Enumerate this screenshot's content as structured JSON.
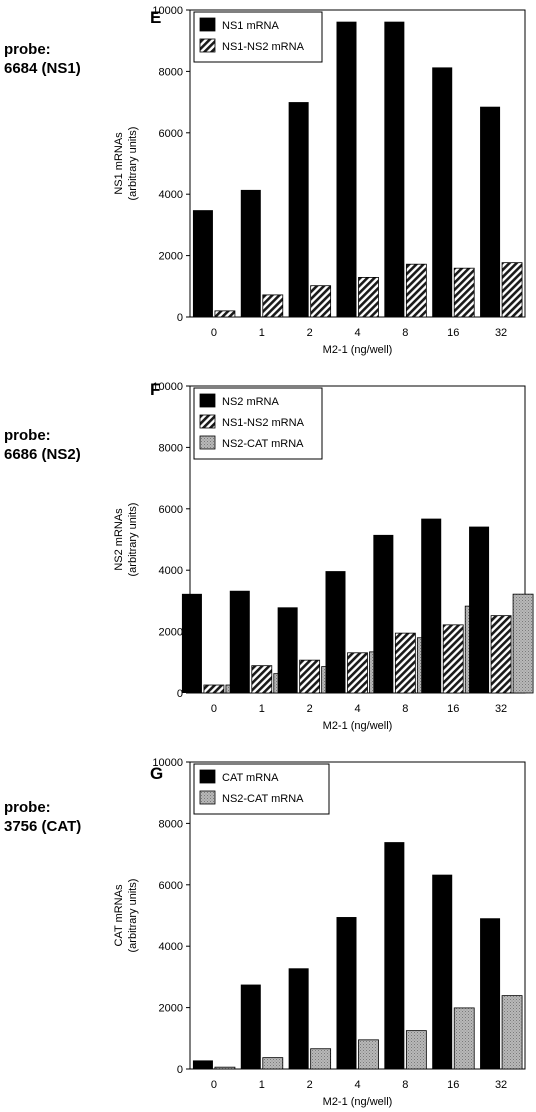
{
  "panels": [
    {
      "letter": "E",
      "probe_line1": "probe:",
      "probe_line2": "6684 (NS1)"
    },
    {
      "letter": "F",
      "probe_line1": "probe:",
      "probe_line2": "6686 (NS2)"
    },
    {
      "letter": "G",
      "probe_line1": "probe:",
      "probe_line2": "3756 (CAT)"
    }
  ],
  "chart_data": [
    {
      "type": "bar",
      "title": "",
      "xlabel": "M2-1 (ng/well)",
      "ylabel": [
        "NS1 mRNAs",
        "(arbitrary units)"
      ],
      "categories": [
        "0",
        "1",
        "2",
        "4",
        "8",
        "16",
        "32"
      ],
      "ylim": [
        0,
        10000
      ],
      "yticks": [
        0,
        2000,
        4000,
        6000,
        8000,
        10000
      ],
      "legend_position": "top-left",
      "series": [
        {
          "name": "NS1 mRNA",
          "style": "solid-black",
          "values": [
            3480,
            4140,
            7000,
            9620,
            9620,
            8130,
            6850
          ]
        },
        {
          "name": "NS1-NS2 mRNA",
          "style": "hatched",
          "values": [
            200,
            720,
            1020,
            1290,
            1720,
            1590,
            1770
          ]
        }
      ]
    },
    {
      "type": "bar",
      "title": "",
      "xlabel": "M2-1 (ng/well)",
      "ylabel": [
        "NS2 mRNAs",
        "(arbitrary units)"
      ],
      "categories": [
        "0",
        "1",
        "2",
        "4",
        "8",
        "16",
        "32"
      ],
      "ylim": [
        0,
        10000
      ],
      "yticks": [
        0,
        2000,
        4000,
        6000,
        8000,
        10000
      ],
      "legend_position": "top-left",
      "series": [
        {
          "name": "NS2 mRNA",
          "style": "solid-black",
          "values": [
            3230,
            3330,
            2790,
            3970,
            5150,
            5680,
            5420
          ]
        },
        {
          "name": "NS1-NS2 mRNA",
          "style": "hatched",
          "values": [
            260,
            890,
            1070,
            1310,
            1950,
            2220,
            2520
          ]
        },
        {
          "name": "NS2-CAT mRNA",
          "style": "gray",
          "values": [
            260,
            630,
            860,
            1340,
            1800,
            2830,
            3220
          ]
        }
      ]
    },
    {
      "type": "bar",
      "title": "",
      "xlabel": "M2-1 (ng/well)",
      "ylabel": [
        "CAT mRNAs",
        "(arbitrary units)"
      ],
      "categories": [
        "0",
        "1",
        "2",
        "4",
        "8",
        "16",
        "32"
      ],
      "ylim": [
        0,
        10000
      ],
      "yticks": [
        0,
        2000,
        4000,
        6000,
        8000,
        10000
      ],
      "legend_position": "top-left",
      "series": [
        {
          "name": "CAT mRNA",
          "style": "solid-black",
          "values": [
            280,
            2750,
            3280,
            4950,
            7390,
            6330,
            4910
          ]
        },
        {
          "name": "NS2-CAT mRNA",
          "style": "gray",
          "values": [
            60,
            370,
            660,
            950,
            1250,
            1990,
            2390
          ]
        }
      ]
    }
  ]
}
